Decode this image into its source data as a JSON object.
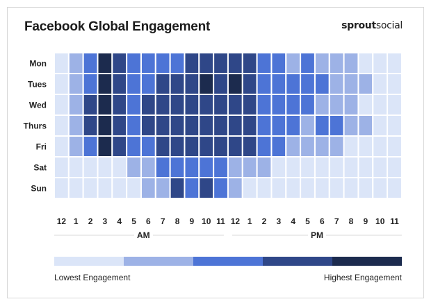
{
  "title": "Facebook Global Engagement",
  "brand": {
    "bold": "sprout",
    "light": "social"
  },
  "chart_data": {
    "type": "heatmap",
    "title": "Facebook Global Engagement",
    "rows": [
      "Mon",
      "Tues",
      "Wed",
      "Thurs",
      "Fri",
      "Sat",
      "Sun"
    ],
    "columns": [
      "12",
      "1",
      "2",
      "3",
      "4",
      "5",
      "6",
      "7",
      "8",
      "9",
      "10",
      "11",
      "12",
      "1",
      "2",
      "3",
      "4",
      "5",
      "6",
      "7",
      "8",
      "9",
      "10",
      "11"
    ],
    "period_labels": [
      "AM",
      "PM"
    ],
    "scale": {
      "levels": 5,
      "low_label": "Lowest Engagement",
      "high_label": "Highest Engagement",
      "colors": [
        "#dbe5f8",
        "#9db2e6",
        "#4d74d6",
        "#2f4788",
        "#1c2b4e"
      ]
    },
    "values": [
      [
        1,
        2,
        3,
        5,
        4,
        3,
        3,
        3,
        3,
        4,
        4,
        4,
        4,
        4,
        3,
        3,
        2,
        3,
        2,
        2,
        2,
        1,
        1,
        1
      ],
      [
        1,
        2,
        3,
        5,
        4,
        3,
        3,
        4,
        4,
        4,
        5,
        4,
        5,
        4,
        3,
        3,
        3,
        3,
        3,
        2,
        2,
        2,
        1,
        1
      ],
      [
        1,
        2,
        4,
        5,
        4,
        3,
        4,
        4,
        4,
        4,
        4,
        4,
        4,
        4,
        3,
        3,
        3,
        3,
        2,
        2,
        2,
        1,
        1,
        1
      ],
      [
        1,
        2,
        4,
        5,
        4,
        3,
        4,
        4,
        4,
        4,
        4,
        4,
        4,
        4,
        3,
        3,
        3,
        2,
        3,
        3,
        2,
        2,
        1,
        1
      ],
      [
        1,
        2,
        3,
        5,
        4,
        3,
        3,
        4,
        4,
        4,
        4,
        4,
        4,
        4,
        3,
        3,
        2,
        2,
        2,
        2,
        1,
        1,
        1,
        1
      ],
      [
        1,
        1,
        1,
        1,
        1,
        2,
        2,
        3,
        3,
        3,
        3,
        3,
        2,
        2,
        2,
        1,
        1,
        1,
        1,
        1,
        1,
        1,
        1,
        1
      ],
      [
        1,
        1,
        1,
        1,
        1,
        1,
        2,
        2,
        4,
        3,
        4,
        3,
        2,
        1,
        1,
        1,
        1,
        1,
        1,
        1,
        1,
        1,
        1,
        1
      ]
    ]
  }
}
